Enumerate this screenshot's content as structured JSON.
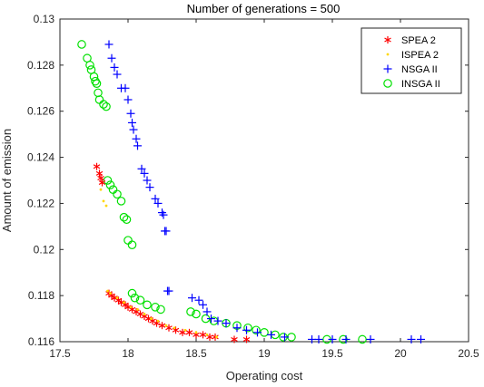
{
  "chart_data": {
    "type": "scatter",
    "title": "Number of generations = 500",
    "xlabel": "Operating cost",
    "ylabel": "Amount of emission",
    "xlim": [
      17.5,
      20.5
    ],
    "ylim": [
      0.116,
      0.13
    ],
    "xticks": [
      "17.5",
      "18",
      "18.5",
      "19",
      "19.5",
      "20",
      "20.5"
    ],
    "yticks": [
      "0.116",
      "0.118",
      "0.12",
      "0.122",
      "0.124",
      "0.126",
      "0.128",
      "0.13"
    ],
    "grid": false,
    "legend_position": "top-right",
    "series": [
      {
        "name": "SPEA 2",
        "marker": "asterisk",
        "color": "#ff0000",
        "points": [
          [
            17.77,
            0.1236
          ],
          [
            17.79,
            0.1233
          ],
          [
            17.8,
            0.1231
          ],
          [
            17.81,
            0.1229
          ],
          [
            17.86,
            0.1181
          ],
          [
            17.88,
            0.118
          ],
          [
            17.9,
            0.1179
          ],
          [
            17.93,
            0.1178
          ],
          [
            17.95,
            0.1177
          ],
          [
            17.98,
            0.1176
          ],
          [
            18.0,
            0.1175
          ],
          [
            18.03,
            0.1174
          ],
          [
            18.06,
            0.1173
          ],
          [
            18.09,
            0.1172
          ],
          [
            18.12,
            0.1171
          ],
          [
            18.15,
            0.117
          ],
          [
            18.18,
            0.1169
          ],
          [
            18.21,
            0.1168
          ],
          [
            18.25,
            0.1167
          ],
          [
            18.3,
            0.1166
          ],
          [
            18.35,
            0.1165
          ],
          [
            18.4,
            0.1164
          ],
          [
            18.45,
            0.1164
          ],
          [
            18.5,
            0.1163
          ],
          [
            18.55,
            0.1163
          ],
          [
            18.6,
            0.1162
          ],
          [
            18.64,
            0.1162
          ],
          [
            18.78,
            0.1161
          ],
          [
            18.87,
            0.1161
          ]
        ]
      },
      {
        "name": "ISPEA 2",
        "marker": "dot",
        "color": "#ffd700",
        "points": [
          [
            17.8,
            0.1226
          ],
          [
            17.82,
            0.1221
          ],
          [
            17.84,
            0.1219
          ],
          [
            17.85,
            0.1182
          ],
          [
            17.87,
            0.1181
          ],
          [
            17.92,
            0.1179
          ],
          [
            17.97,
            0.1177
          ],
          [
            18.02,
            0.1175
          ],
          [
            18.07,
            0.1174
          ],
          [
            18.12,
            0.1172
          ],
          [
            18.17,
            0.117
          ],
          [
            18.22,
            0.1169
          ],
          [
            18.28,
            0.1167
          ],
          [
            18.34,
            0.1166
          ],
          [
            18.42,
            0.1165
          ],
          [
            18.5,
            0.1164
          ],
          [
            18.58,
            0.1163
          ],
          [
            18.65,
            0.1162
          ]
        ]
      },
      {
        "name": "NSGA II",
        "marker": "plus",
        "color": "#0000ff",
        "points": [
          [
            17.86,
            0.1289
          ],
          [
            17.88,
            0.1283
          ],
          [
            17.9,
            0.1279
          ],
          [
            17.92,
            0.1276
          ],
          [
            17.95,
            0.127
          ],
          [
            17.98,
            0.127
          ],
          [
            18.0,
            0.1265
          ],
          [
            18.02,
            0.1259
          ],
          [
            18.03,
            0.1255
          ],
          [
            18.04,
            0.1252
          ],
          [
            18.06,
            0.1248
          ],
          [
            18.07,
            0.1245
          ],
          [
            18.1,
            0.1235
          ],
          [
            18.12,
            0.1233
          ],
          [
            18.14,
            0.123
          ],
          [
            18.16,
            0.1227
          ],
          [
            18.2,
            0.1222
          ],
          [
            18.22,
            0.122
          ],
          [
            18.25,
            0.1216
          ],
          [
            18.26,
            0.1215
          ],
          [
            18.27,
            0.1208
          ],
          [
            18.28,
            0.1208
          ],
          [
            18.29,
            0.1182
          ],
          [
            18.3,
            0.1182
          ],
          [
            18.47,
            0.1179
          ],
          [
            18.52,
            0.1178
          ],
          [
            18.55,
            0.1176
          ],
          [
            18.58,
            0.1173
          ],
          [
            18.61,
            0.117
          ],
          [
            18.66,
            0.1169
          ],
          [
            18.72,
            0.1168
          ],
          [
            18.8,
            0.1166
          ],
          [
            18.87,
            0.1165
          ],
          [
            18.95,
            0.1164
          ],
          [
            19.05,
            0.1163
          ],
          [
            19.15,
            0.1162
          ],
          [
            19.35,
            0.1161
          ],
          [
            19.4,
            0.1161
          ],
          [
            19.5,
            0.1161
          ],
          [
            19.6,
            0.1161
          ],
          [
            19.78,
            0.1161
          ],
          [
            20.08,
            0.1161
          ],
          [
            20.15,
            0.1161
          ]
        ]
      },
      {
        "name": "INSGA II",
        "marker": "circle",
        "color": "#00e000",
        "points": [
          [
            17.66,
            0.1289
          ],
          [
            17.7,
            0.1283
          ],
          [
            17.72,
            0.128
          ],
          [
            17.73,
            0.1278
          ],
          [
            17.75,
            0.1275
          ],
          [
            17.76,
            0.1273
          ],
          [
            17.77,
            0.1272
          ],
          [
            17.78,
            0.1268
          ],
          [
            17.79,
            0.1265
          ],
          [
            17.82,
            0.1263
          ],
          [
            17.84,
            0.1262
          ],
          [
            17.85,
            0.123
          ],
          [
            17.87,
            0.1228
          ],
          [
            17.89,
            0.1226
          ],
          [
            17.92,
            0.1224
          ],
          [
            17.95,
            0.1221
          ],
          [
            17.97,
            0.1214
          ],
          [
            17.99,
            0.1213
          ],
          [
            18.0,
            0.1204
          ],
          [
            18.03,
            0.1202
          ],
          [
            18.03,
            0.1181
          ],
          [
            18.05,
            0.1179
          ],
          [
            18.09,
            0.1178
          ],
          [
            18.14,
            0.1176
          ],
          [
            18.2,
            0.1175
          ],
          [
            18.24,
            0.1174
          ],
          [
            18.46,
            0.1173
          ],
          [
            18.5,
            0.1172
          ],
          [
            18.57,
            0.117
          ],
          [
            18.63,
            0.1169
          ],
          [
            18.72,
            0.1168
          ],
          [
            18.8,
            0.1167
          ],
          [
            18.88,
            0.1166
          ],
          [
            18.94,
            0.1165
          ],
          [
            19.0,
            0.1164
          ],
          [
            19.08,
            0.1163
          ],
          [
            19.14,
            0.1162
          ],
          [
            19.2,
            0.1162
          ],
          [
            19.46,
            0.1161
          ],
          [
            19.58,
            0.1161
          ],
          [
            19.72,
            0.1161
          ]
        ]
      }
    ]
  }
}
